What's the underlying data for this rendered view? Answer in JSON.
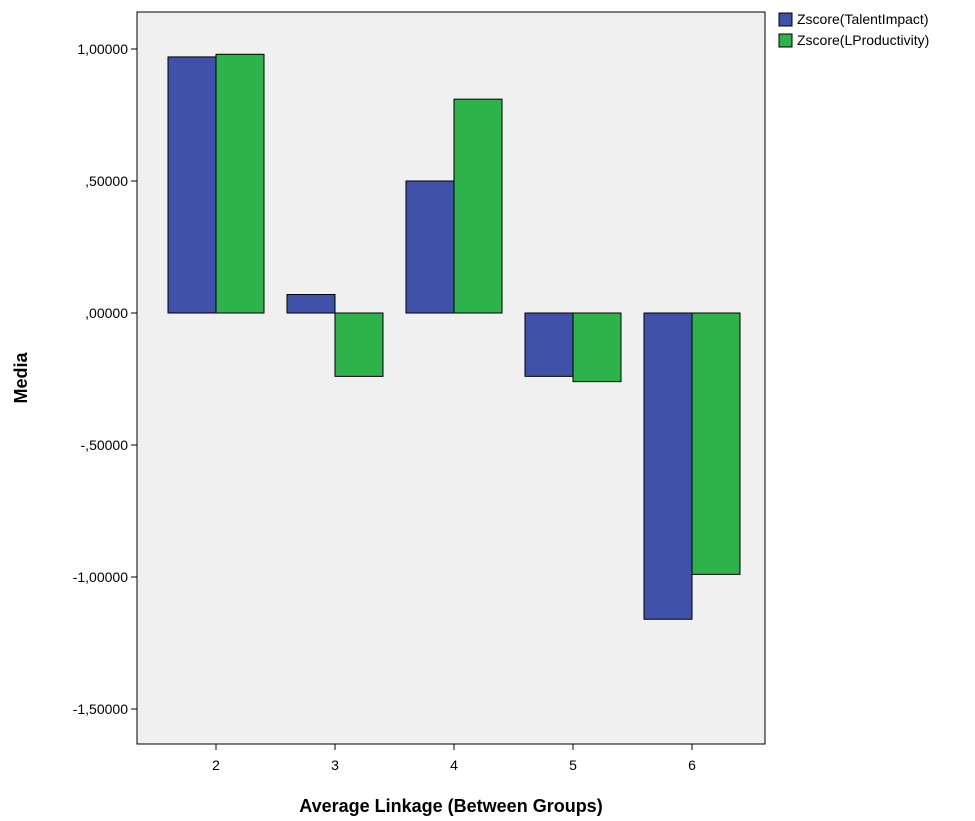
{
  "chart_data": {
    "type": "bar",
    "title": "",
    "xlabel": "Average Linkage (Between Groups)",
    "ylabel": "Media",
    "categories": [
      "2",
      "3",
      "4",
      "5",
      "6"
    ],
    "series": [
      {
        "name": "Zscore(TalentImpact)",
        "color": "#3f51a8",
        "values": [
          0.97,
          0.07,
          0.5,
          -0.24,
          -1.16
        ]
      },
      {
        "name": "Zscore(LProductivity)",
        "color": "#2db34a",
        "values": [
          0.98,
          -0.24,
          0.81,
          -0.26,
          -0.99
        ]
      }
    ],
    "ylim": [
      -1.65,
      1.15
    ],
    "yticks": [
      1.0,
      0.5,
      0.0,
      -0.5,
      -1.0,
      -1.5
    ],
    "ytick_labels": [
      "1,00000",
      ",50000",
      ",00000",
      "-,50000",
      "-1,00000",
      "-1,50000"
    ],
    "plot_background": "#f0f0f0",
    "grid": false,
    "legend_position": "top-right"
  }
}
